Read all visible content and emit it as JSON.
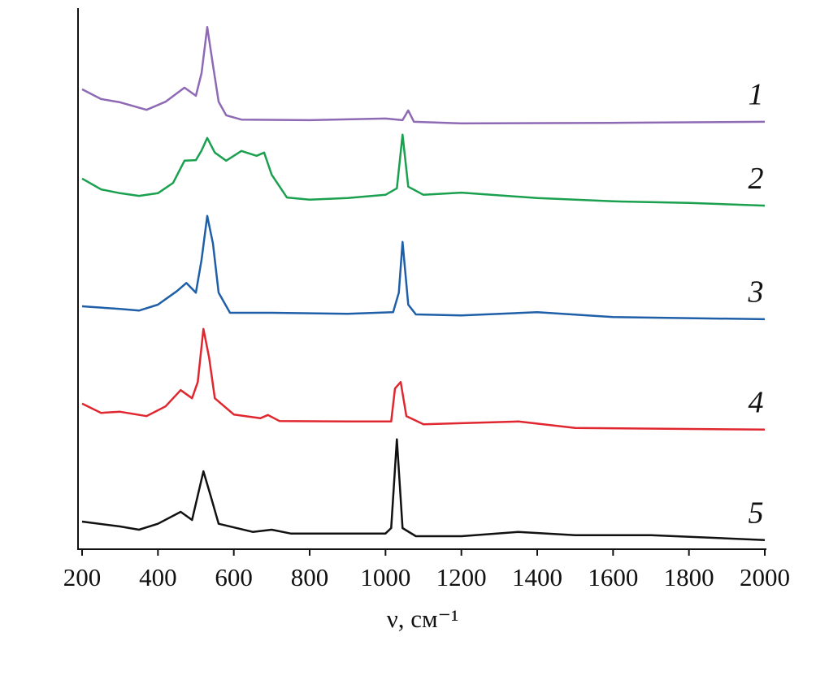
{
  "chart_data": {
    "type": "line",
    "x_label": "ν, см⁻¹",
    "xlim": [
      200,
      2000
    ],
    "xticks": [
      200,
      400,
      600,
      800,
      1000,
      1200,
      1400,
      1600,
      1800,
      2000
    ],
    "ylim": [
      0,
      100
    ],
    "grid": false,
    "series": [
      {
        "name": "1",
        "color": "#8e69b4",
        "x": [
          200,
          250,
          300,
          370,
          420,
          470,
          500,
          515,
          530,
          545,
          560,
          580,
          620,
          800,
          1000,
          1045,
          1060,
          1075,
          1200,
          1600,
          2000
        ],
        "values": [
          85.0,
          83.2,
          82.6,
          81.2,
          82.7,
          85.3,
          83.8,
          88.0,
          96.5,
          89.5,
          82.7,
          80.2,
          79.4,
          79.3,
          79.6,
          79.3,
          81.1,
          79.0,
          78.7,
          78.8,
          79.0
        ]
      },
      {
        "name": "2",
        "color": "#1aa04f",
        "x": [
          200,
          250,
          300,
          350,
          400,
          440,
          470,
          500,
          515,
          530,
          550,
          580,
          620,
          660,
          680,
          700,
          740,
          800,
          900,
          1000,
          1030,
          1045,
          1060,
          1100,
          1200,
          1400,
          1600,
          1800,
          2000
        ],
        "values": [
          68.5,
          66.5,
          65.8,
          65.3,
          65.8,
          67.7,
          71.8,
          71.9,
          73.7,
          76.0,
          73.3,
          71.8,
          73.6,
          72.7,
          73.3,
          69.2,
          65.0,
          64.6,
          64.9,
          65.5,
          66.7,
          76.6,
          67.0,
          65.5,
          65.9,
          64.9,
          64.3,
          64.0,
          63.5
        ]
      },
      {
        "name": "3",
        "color": "#1f5fa8",
        "x": [
          200,
          300,
          350,
          400,
          450,
          475,
          500,
          515,
          530,
          545,
          560,
          590,
          700,
          900,
          1020,
          1035,
          1045,
          1060,
          1080,
          1200,
          1400,
          1600,
          2000
        ],
        "values": [
          44.9,
          44.4,
          44.1,
          45.2,
          47.7,
          49.2,
          47.4,
          53.5,
          61.6,
          56.5,
          47.4,
          43.7,
          43.7,
          43.5,
          43.8,
          47.4,
          56.8,
          45.2,
          43.4,
          43.2,
          43.8,
          42.9,
          42.5
        ]
      },
      {
        "name": "4",
        "color": "#e0272f",
        "x": [
          200,
          250,
          300,
          370,
          420,
          460,
          490,
          505,
          520,
          535,
          550,
          600,
          670,
          690,
          720,
          900,
          1015,
          1025,
          1040,
          1055,
          1100,
          1350,
          1500,
          2000
        ],
        "values": [
          26.9,
          25.2,
          25.4,
          24.6,
          26.4,
          29.4,
          27.9,
          30.9,
          40.7,
          35.4,
          27.9,
          24.9,
          24.2,
          24.8,
          23.7,
          23.6,
          23.6,
          29.7,
          30.9,
          24.6,
          23.1,
          23.6,
          22.4,
          22.1
        ]
      },
      {
        "name": "5",
        "color": "#111111",
        "x": [
          200,
          300,
          350,
          400,
          460,
          490,
          520,
          540,
          560,
          650,
          700,
          750,
          1000,
          1015,
          1030,
          1045,
          1080,
          1200,
          1350,
          1500,
          1700,
          2000
        ],
        "values": [
          5.1,
          4.2,
          3.6,
          4.7,
          6.9,
          5.4,
          14.4,
          9.6,
          4.7,
          3.2,
          3.6,
          2.9,
          2.9,
          3.9,
          20.3,
          3.9,
          2.4,
          2.4,
          3.2,
          2.6,
          2.6,
          1.7
        ]
      }
    ]
  }
}
